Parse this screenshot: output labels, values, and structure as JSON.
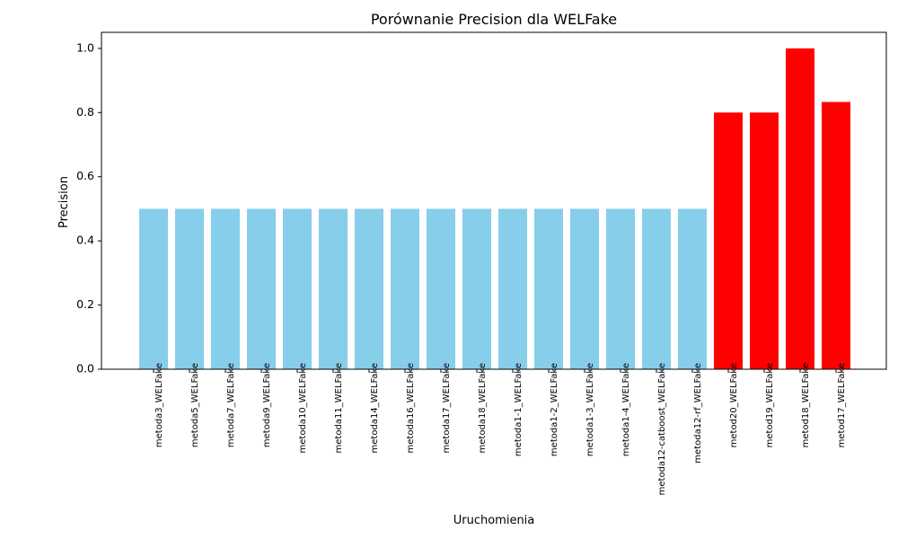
{
  "chart_data": {
    "type": "bar",
    "title": "Porównanie Precision dla WELFake",
    "xlabel": "Uruchomienia",
    "ylabel": "Precision",
    "ylim": [
      0.0,
      1.05
    ],
    "yticks": [
      "0.0",
      "0.2",
      "0.4",
      "0.6",
      "0.8",
      "1.0"
    ],
    "grid": false,
    "legend": "none",
    "categories": [
      "metoda3_WELFake",
      "metoda5_WELFake",
      "metoda7_WELFake",
      "metoda9_WELFake",
      "metoda10_WELFake",
      "metoda11_WELFake",
      "metoda14_WELFake",
      "metoda16_WELFake",
      "metoda17_WELFake",
      "metoda18_WELFake",
      "metoda1-1_WELFake",
      "metoda1-2_WELFake",
      "metoda1-3_WELFake",
      "metoda1-4_WELFake",
      "metoda12-catboost_WELFake",
      "metoda12-rf_WELFake",
      "metod20_WELFake",
      "metod19_WELFake",
      "metod18_WELFake",
      "metod17_WELFake"
    ],
    "values": [
      0.5,
      0.5,
      0.5,
      0.5,
      0.5,
      0.5,
      0.5,
      0.5,
      0.5,
      0.5,
      0.5,
      0.5,
      0.5,
      0.5,
      0.5,
      0.5,
      0.8,
      0.8,
      1.0,
      0.833
    ],
    "bar_colors": [
      "#87ceeb",
      "#87ceeb",
      "#87ceeb",
      "#87ceeb",
      "#87ceeb",
      "#87ceeb",
      "#87ceeb",
      "#87ceeb",
      "#87ceeb",
      "#87ceeb",
      "#87ceeb",
      "#87ceeb",
      "#87ceeb",
      "#87ceeb",
      "#87ceeb",
      "#87ceeb",
      "#ff0000",
      "#ff0000",
      "#ff0000",
      "#ff0000"
    ]
  }
}
